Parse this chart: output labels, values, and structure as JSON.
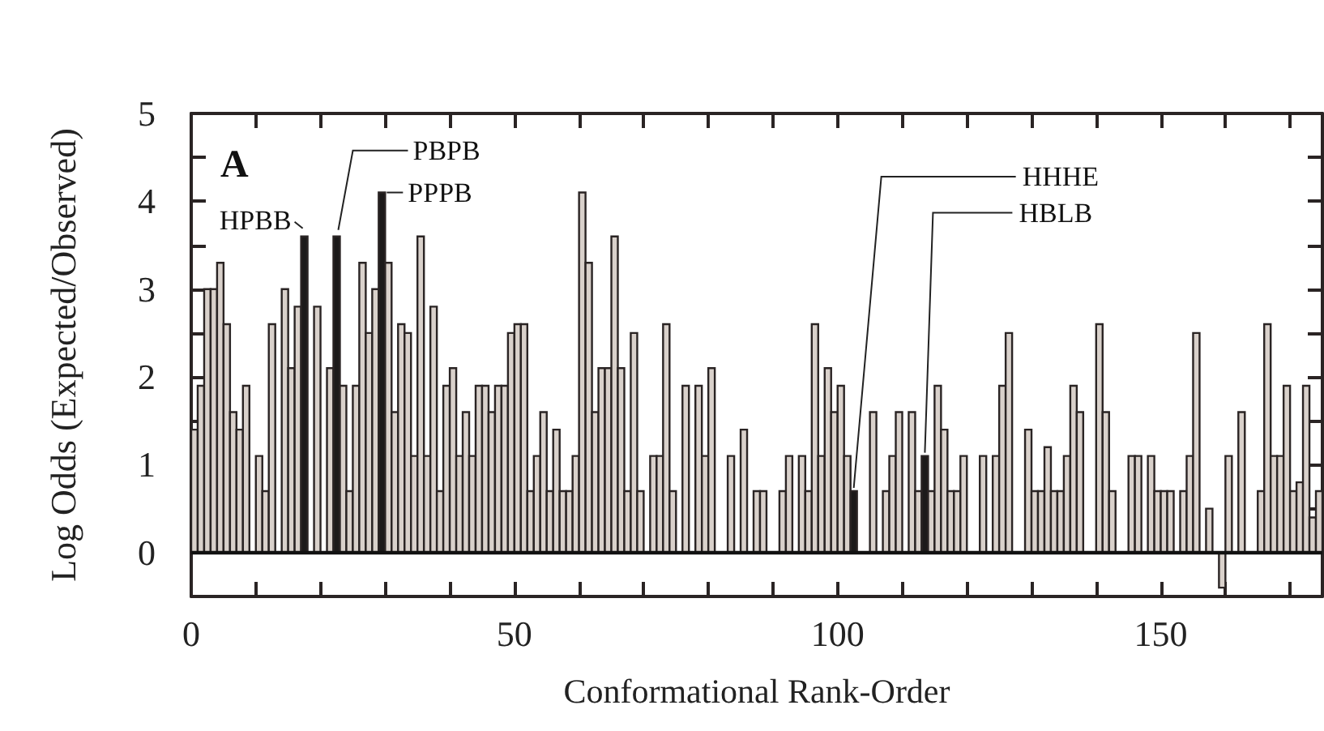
{
  "chart_data": {
    "type": "histogram",
    "xlabel": "Conformational Rank-Order",
    "ylabel": "Log Odds (Expected/Observed)",
    "bins": [
      0,
      1,
      2,
      3,
      4,
      5,
      6,
      7,
      8,
      9,
      10,
      11,
      12,
      13,
      14,
      15,
      16,
      17,
      18,
      19,
      20,
      21,
      22,
      23,
      24,
      25,
      26,
      27,
      28,
      29,
      30,
      31,
      32,
      33,
      34,
      35,
      36,
      37,
      38,
      39,
      40,
      41,
      42,
      43,
      44,
      45,
      46,
      47,
      48,
      49,
      50,
      51,
      52,
      53,
      54,
      55,
      56,
      57,
      58,
      59,
      60,
      61,
      62,
      63,
      64,
      65,
      66,
      67,
      68,
      69,
      70,
      71,
      72,
      73,
      74,
      75,
      76,
      77,
      78,
      79,
      80,
      81,
      82,
      83,
      84,
      85,
      86,
      87,
      88,
      89,
      90,
      91,
      92,
      93,
      94,
      95,
      96,
      97,
      98,
      99,
      100,
      101,
      102,
      103,
      104,
      105,
      106,
      107,
      108,
      109,
      110,
      111,
      112,
      113,
      114,
      115,
      116,
      117,
      118,
      119,
      120,
      121,
      122,
      123,
      124,
      125,
      126,
      127,
      128,
      129,
      130,
      131,
      132,
      133,
      134,
      135,
      136,
      137,
      138,
      139,
      140,
      141,
      142,
      143,
      144,
      145,
      146,
      147,
      148,
      149,
      150,
      151,
      152,
      153,
      154,
      155,
      156,
      157,
      158,
      159,
      160,
      161,
      162,
      163,
      164,
      165,
      166,
      167,
      168,
      169,
      170,
      171,
      172,
      173,
      174,
      175
    ],
    "values": [
      1.4,
      1.9,
      3.0,
      3.0,
      3.3,
      2.6,
      1.6,
      1.4,
      1.9,
      0,
      1.1,
      0.7,
      2.6,
      0,
      3.0,
      2.1,
      2.8,
      3.6,
      0,
      2.8,
      0,
      2.1,
      3.6,
      1.9,
      0.7,
      1.9,
      3.3,
      2.5,
      3.0,
      4.1,
      3.3,
      1.6,
      2.6,
      2.5,
      1.1,
      3.6,
      1.1,
      2.8,
      0.7,
      1.9,
      2.1,
      1.1,
      1.6,
      1.1,
      1.9,
      1.9,
      1.6,
      1.9,
      1.9,
      2.5,
      2.6,
      2.6,
      0.7,
      1.1,
      1.6,
      0.7,
      1.4,
      0.7,
      0.7,
      1.1,
      4.1,
      3.3,
      1.6,
      2.1,
      2.1,
      3.6,
      2.1,
      0.7,
      2.5,
      0.7,
      0,
      1.1,
      1.1,
      2.6,
      0.7,
      0,
      1.9,
      0,
      1.9,
      1.1,
      2.1,
      0,
      0,
      1.1,
      0,
      1.4,
      0,
      0.7,
      0.7,
      0,
      0,
      0.7,
      1.1,
      0,
      1.1,
      0.7,
      2.6,
      1.1,
      2.1,
      1.6,
      1.9,
      1.1,
      0.7,
      0,
      0,
      1.6,
      0,
      0.7,
      1.1,
      1.6,
      0,
      1.6,
      0.7,
      1.1,
      0.7,
      1.9,
      1.4,
      0.7,
      0.7,
      1.1,
      0,
      0,
      1.1,
      0,
      1.1,
      1.9,
      2.5,
      0,
      0,
      1.4,
      0.7,
      0.7,
      1.2,
      0.7,
      0.7,
      1.1,
      1.9,
      1.6,
      0,
      0,
      2.6,
      1.6,
      0.7,
      0,
      0,
      1.1,
      1.1,
      0,
      1.1,
      0.7,
      0.7,
      0.7,
      0,
      0.7,
      1.1,
      2.5,
      0,
      0.5,
      0,
      -0.4,
      1.1,
      0,
      1.6,
      0,
      0,
      0.7,
      2.6,
      1.1,
      1.1,
      1.9,
      0.7,
      0.8,
      1.9,
      0.4,
      0.7
    ],
    "colors": [
      "#d9d1cb",
      "#d9d1cb",
      "#d9d1cb",
      "#d9d1cb",
      "#d9d1cb",
      "#d9d1cb",
      "#d9d1cb",
      "#d9d1cb",
      "#d9d1cb",
      "#d9d1cb",
      "#d9d1cb",
      "#d9d1cb",
      "#d9d1cb",
      "#d9d1cb",
      "#d9d1cb",
      "#d9d1cb",
      "#d9d1cb",
      "#1c1a1a",
      "#d9d1cb",
      "#d9d1cb",
      "#d9d1cb",
      "#d9d1cb",
      "#1c1a1a",
      "#d9d1cb",
      "#d9d1cb",
      "#d9d1cb",
      "#d9d1cb",
      "#d9d1cb",
      "#d9d1cb",
      "#1c1a1a",
      "#d9d1cb",
      "#d9d1cb",
      "#d9d1cb",
      "#d9d1cb",
      "#d9d1cb",
      "#d9d1cb",
      "#d9d1cb",
      "#d9d1cb",
      "#d9d1cb",
      "#d9d1cb",
      "#d9d1cb",
      "#d9d1cb",
      "#d9d1cb",
      "#d9d1cb",
      "#d9d1cb",
      "#d9d1cb",
      "#d9d1cb",
      "#d9d1cb",
      "#d9d1cb",
      "#d9d1cb",
      "#d9d1cb",
      "#d9d1cb",
      "#d9d1cb",
      "#d9d1cb",
      "#d9d1cb",
      "#d9d1cb",
      "#d9d1cb",
      "#d9d1cb",
      "#d9d1cb",
      "#d9d1cb",
      "#d9d1cb",
      "#d9d1cb",
      "#d9d1cb",
      "#d9d1cb",
      "#d9d1cb",
      "#d9d1cb",
      "#d9d1cb",
      "#d9d1cb",
      "#d9d1cb",
      "#d9d1cb",
      "#d9d1cb",
      "#d9d1cb",
      "#d9d1cb",
      "#d9d1cb",
      "#d9d1cb",
      "#d9d1cb",
      "#d9d1cb",
      "#d9d1cb",
      "#d9d1cb",
      "#d9d1cb",
      "#d9d1cb",
      "#d9d1cb",
      "#d9d1cb",
      "#d9d1cb",
      "#d9d1cb",
      "#d9d1cb",
      "#d9d1cb",
      "#d9d1cb",
      "#d9d1cb",
      "#d9d1cb",
      "#d9d1cb",
      "#d9d1cb",
      "#d9d1cb",
      "#d9d1cb",
      "#d9d1cb",
      "#d9d1cb",
      "#d9d1cb",
      "#d9d1cb",
      "#d9d1cb",
      "#d9d1cb",
      "#d9d1cb",
      "#d9d1cb",
      "#1c1a1a",
      "#d9d1cb",
      "#d9d1cb",
      "#d9d1cb",
      "#d9d1cb",
      "#d9d1cb",
      "#d9d1cb",
      "#d9d1cb",
      "#d9d1cb",
      "#d9d1cb",
      "#d9d1cb",
      "#1c1a1a",
      "#d9d1cb",
      "#d9d1cb",
      "#d9d1cb",
      "#d9d1cb",
      "#d9d1cb",
      "#d9d1cb",
      "#d9d1cb",
      "#d9d1cb",
      "#d9d1cb",
      "#d9d1cb",
      "#d9d1cb",
      "#d9d1cb",
      "#d9d1cb",
      "#d9d1cb",
      "#d9d1cb",
      "#d9d1cb",
      "#d9d1cb",
      "#d9d1cb",
      "#d9d1cb",
      "#d9d1cb",
      "#d9d1cb",
      "#d9d1cb",
      "#d9d1cb",
      "#d9d1cb",
      "#d9d1cb",
      "#d9d1cb",
      "#d9d1cb",
      "#d9d1cb",
      "#d9d1cb",
      "#d9d1cb",
      "#d9d1cb",
      "#d9d1cb",
      "#d9d1cb",
      "#d9d1cb",
      "#d9d1cb",
      "#d9d1cb",
      "#d9d1cb",
      "#d9d1cb",
      "#d9d1cb",
      "#d9d1cb",
      "#d9d1cb",
      "#d9d1cb",
      "#d9d1cb",
      "#d9d1cb",
      "#d9d1cb",
      "#d9d1cb",
      "#d9d1cb",
      "#d9d1cb",
      "#d9d1cb",
      "#d9d1cb",
      "#d9d1cb",
      "#d9d1cb",
      "#d9d1cb",
      "#d9d1cb",
      "#d9d1cb",
      "#d9d1cb",
      "#d9d1cb",
      "#d9d1cb",
      "#d9d1cb",
      "#d9d1cb",
      "#d9d1cb"
    ],
    "xlim": [
      0,
      175
    ],
    "ylim": [
      -0.5,
      5
    ],
    "xticks": [
      0,
      {
        "value": 10,
        "label": null
      },
      {
        "value": 20,
        "label": null
      },
      {
        "value": 30,
        "label": null
      },
      {
        "value": 40,
        "label": null
      },
      50,
      {
        "value": 60,
        "label": null
      },
      {
        "value": 70,
        "label": null
      },
      {
        "value": 80,
        "label": null
      },
      {
        "value": 90,
        "label": null
      },
      100,
      {
        "value": 110,
        "label": null
      },
      {
        "value": 120,
        "label": null
      },
      {
        "value": 130,
        "label": null
      },
      {
        "value": 140,
        "label": null
      },
      150,
      {
        "value": 160,
        "label": null
      },
      {
        "value": 170,
        "label": null
      }
    ],
    "yticks": [
      0,
      {
        "value": 0.5,
        "label": null
      },
      1,
      {
        "value": 1.5,
        "label": null
      },
      2,
      {
        "value": 2.5,
        "label": null
      },
      3,
      {
        "value": 3.5,
        "label": null
      },
      4,
      {
        "value": 4.5,
        "label": null
      },
      5
    ],
    "ref_lines": [
      {
        "axis": "y",
        "value": 0
      }
    ],
    "annotations": [
      "A",
      {
        "text": "HPBB",
        "x": 17.5,
        "y": 3.6
      },
      {
        "text": "PBPB",
        "x": 22.5,
        "y": 3.6
      },
      {
        "text": "PPPB",
        "x": 29.5,
        "y": 4.1
      },
      {
        "text": "HHHE",
        "x": 102.5,
        "y": 0.7
      },
      {
        "text": "HBLB",
        "x": 113.5,
        "y": 1.1
      }
    ]
  }
}
